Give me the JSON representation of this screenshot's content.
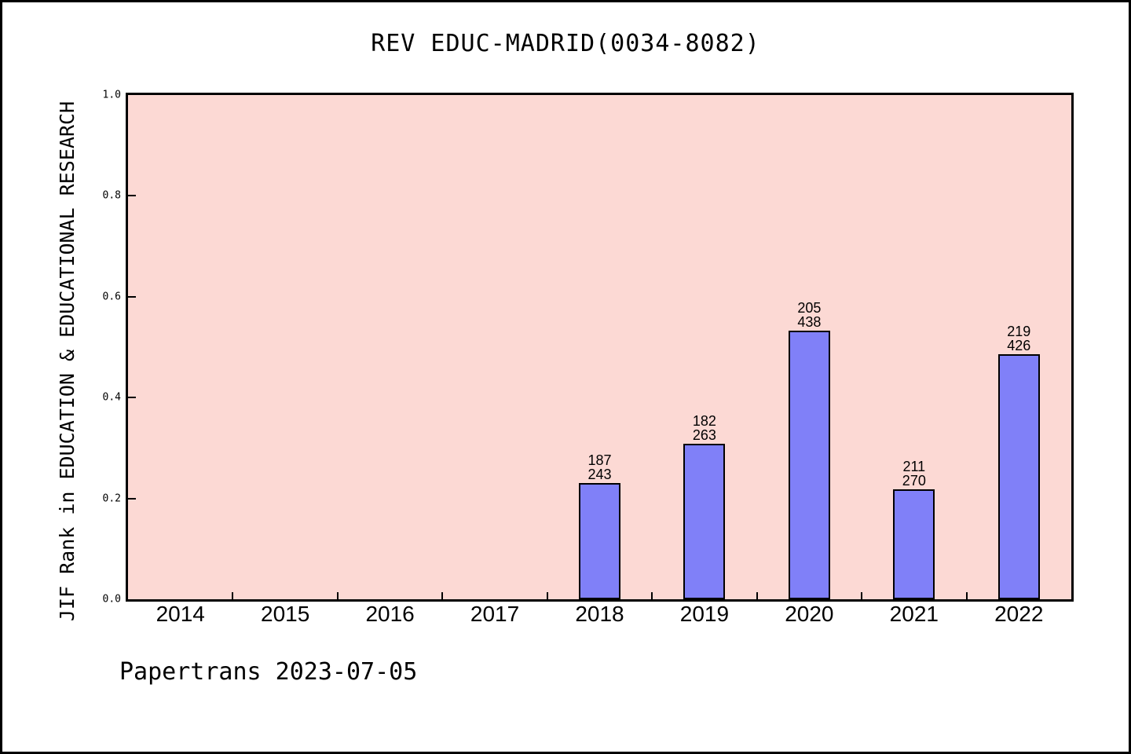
{
  "chart": {
    "title": "REV EDUC-MADRID(0034-8082)",
    "y_axis_label": "JIF Rank in EDUCATION & EDUCATIONAL RESEARCH",
    "footer": "Papertrans 2023-07-05"
  },
  "chart_data": {
    "type": "bar",
    "title": "REV EDUC-MADRID(0034-8082)",
    "xlabel": "",
    "ylabel": "JIF Rank in EDUCATION & EDUCATIONAL RESEARCH",
    "categories": [
      "2014",
      "2015",
      "2016",
      "2017",
      "2018",
      "2019",
      "2020",
      "2021",
      "2022"
    ],
    "values": [
      null,
      null,
      null,
      null,
      0.2305,
      0.308,
      0.532,
      0.2185,
      0.4859
    ],
    "bars": [
      {
        "category": "2018",
        "rank": "187",
        "total": "243",
        "value": 0.2305
      },
      {
        "category": "2019",
        "rank": "182",
        "total": "263",
        "value": 0.308
      },
      {
        "category": "2020",
        "rank": "205",
        "total": "438",
        "value": 0.532
      },
      {
        "category": "2021",
        "rank": "211",
        "total": "270",
        "value": 0.2185
      },
      {
        "category": "2022",
        "rank": "219",
        "total": "426",
        "value": 0.4859
      }
    ],
    "ylim": [
      0.0,
      1.0
    ],
    "yticks": [
      0.0,
      0.2,
      0.4,
      0.6,
      0.8,
      1.0
    ],
    "ytick_labels": [
      "0.0",
      "0.2",
      "0.4",
      "0.6",
      "0.8",
      "1.0"
    ],
    "grid": false,
    "legend": null,
    "colors": {
      "bar_fill": "#8080f8",
      "bar_border": "#000000",
      "plot_background": "#fcd9d4",
      "axis": "#000000",
      "text": "#000000",
      "page_background": "#ffffff"
    }
  }
}
